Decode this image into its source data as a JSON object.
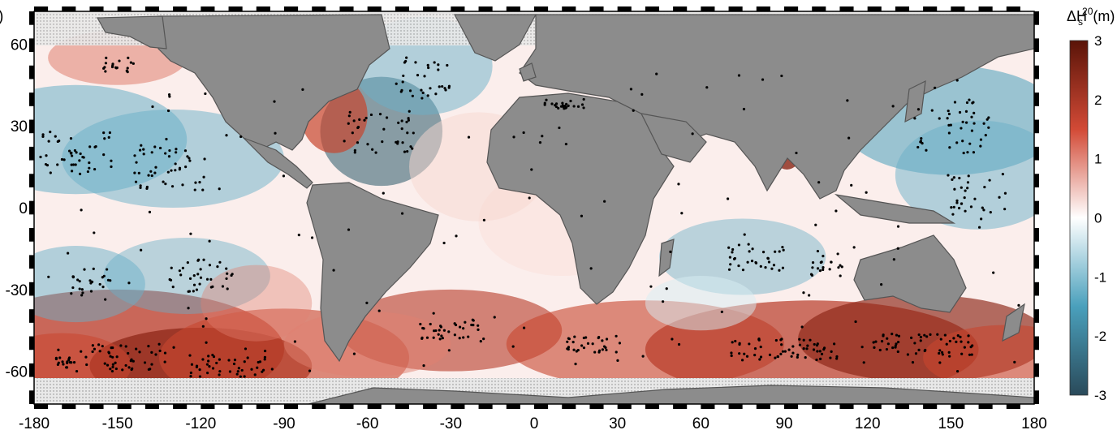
{
  "panel_label": ")",
  "colorbar": {
    "symbol": "ΔH",
    "subscript": "s",
    "superscript": "20",
    "unit": "(m)",
    "ticks": [
      "3",
      "2",
      "1",
      "0",
      "-1",
      "-2",
      "-3"
    ],
    "min": -3,
    "max": 3,
    "colors": [
      "#2a4a5a",
      "#4aa0bc",
      "#ffffff",
      "#d24a36",
      "#5a1408"
    ]
  },
  "axes": {
    "x_ticks": [
      "-180",
      "-150",
      "-120",
      "-90",
      "-60",
      "-30",
      "0",
      "30",
      "60",
      "90",
      "120",
      "150",
      "180"
    ],
    "y_ticks": [
      "60",
      "30",
      "0",
      "-30",
      "-60"
    ],
    "x_range": [
      -180,
      180
    ],
    "y_range": [
      -72,
      72
    ]
  },
  "colors": {
    "land": "#8c8c8c",
    "coast": "#555555",
    "positive_anomaly": "#c8462e",
    "negative_anomaly": "#6ab0c8",
    "stipple": "#000000"
  }
}
